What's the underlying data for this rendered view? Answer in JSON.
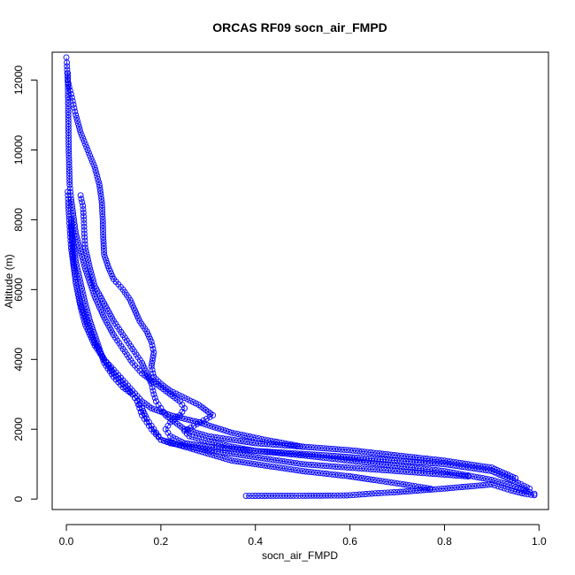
{
  "chart_data": {
    "type": "scatter",
    "title": "ORCAS RF09 socn_air_FMPD",
    "xlabel": "socn_air_FMPD",
    "ylabel": "Altitude (m)",
    "xlim": [
      -0.03,
      1.02
    ],
    "ylim": [
      -300,
      12800
    ],
    "xticks": [
      "0.0",
      "0.2",
      "0.4",
      "0.6",
      "0.8",
      "1.0"
    ],
    "yticks": [
      "0",
      "2000",
      "4000",
      "6000",
      "8000",
      "10000",
      "12000"
    ],
    "grid": false,
    "legend": "none",
    "point_style": "open-circle",
    "color": "#0000ff",
    "series": [
      {
        "x": [
          0.0,
          0.001,
          0.002,
          0.003,
          0.006,
          0.01,
          0.015,
          0.02,
          0.03,
          0.045,
          0.06,
          0.07,
          0.075,
          0.077,
          0.078,
          0.08,
          0.09,
          0.1,
          0.12,
          0.135,
          0.145,
          0.155,
          0.17,
          0.18,
          0.185,
          0.18,
          0.185,
          0.2,
          0.22,
          0.25,
          0.28,
          0.3,
          0.31,
          0.29,
          0.27,
          0.25,
          0.26,
          0.3,
          0.35,
          0.4,
          0.5,
          0.6,
          0.7,
          0.8,
          0.9,
          0.95,
          0.98,
          0.99
        ],
        "y": [
          12650,
          12500,
          12200,
          12000,
          11800,
          11600,
          11300,
          11000,
          10500,
          10000,
          9500,
          9000,
          8500,
          8000,
          7500,
          7000,
          6600,
          6300,
          6000,
          5700,
          5400,
          5100,
          4800,
          4500,
          4200,
          3800,
          3500,
          3300,
          3100,
          2900,
          2700,
          2500,
          2400,
          2250,
          2100,
          1950,
          1800,
          1650,
          1500,
          1380,
          1250,
          1100,
          950,
          800,
          550,
          350,
          200,
          150
        ]
      },
      {
        "x": [
          0.003,
          0.004,
          0.005,
          0.007,
          0.01,
          0.02,
          0.04,
          0.06,
          0.08,
          0.1,
          0.12,
          0.14,
          0.16,
          0.18,
          0.2,
          0.22,
          0.24,
          0.25,
          0.24,
          0.22,
          0.21,
          0.22,
          0.25,
          0.3,
          0.4,
          0.55,
          0.7,
          0.8,
          0.85,
          0.9,
          0.95,
          0.98
        ],
        "y": [
          12200,
          11000,
          10000,
          9000,
          8600,
          7600,
          6600,
          5800,
          5200,
          4700,
          4300,
          3900,
          3600,
          3400,
          3200,
          3000,
          2800,
          2600,
          2400,
          2200,
          2000,
          1800,
          1600,
          1500,
          1380,
          1250,
          1100,
          1000,
          900,
          800,
          500,
          300
        ]
      },
      {
        "x": [
          0.003,
          0.004,
          0.006,
          0.008,
          0.01,
          0.015,
          0.02,
          0.03,
          0.045,
          0.06,
          0.08,
          0.1,
          0.12,
          0.14,
          0.15,
          0.155,
          0.16,
          0.17,
          0.18,
          0.19,
          0.2,
          0.22,
          0.26,
          0.3,
          0.4,
          0.5,
          0.6,
          0.7,
          0.8,
          0.85
        ],
        "y": [
          8800,
          8500,
          8000,
          7600,
          7200,
          6700,
          6200,
          5600,
          5000,
          4500,
          4000,
          3600,
          3300,
          3000,
          2800,
          2600,
          2400,
          2200,
          2000,
          1850,
          1700,
          1600,
          1500,
          1400,
          1200,
          1000,
          900,
          800,
          700,
          650
        ]
      },
      {
        "x": [
          0.03,
          0.035,
          0.037,
          0.038,
          0.04,
          0.05,
          0.06,
          0.08,
          0.1,
          0.12,
          0.14,
          0.16,
          0.17,
          0.18,
          0.185,
          0.19,
          0.2,
          0.21,
          0.23,
          0.25,
          0.3,
          0.4,
          0.5,
          0.6,
          0.7,
          0.8,
          0.9,
          0.95
        ],
        "y": [
          8700,
          8400,
          8000,
          7600,
          7200,
          6600,
          6100,
          5600,
          5100,
          4700,
          4300,
          3900,
          3600,
          3300,
          3000,
          2800,
          2600,
          2400,
          2200,
          2000,
          1800,
          1600,
          1500,
          1400,
          1250,
          1100,
          900,
          600
        ]
      },
      {
        "x": [
          0.01,
          0.015,
          0.02,
          0.03,
          0.04,
          0.05,
          0.06,
          0.07,
          0.08,
          0.1,
          0.12,
          0.14,
          0.15,
          0.16,
          0.17,
          0.18,
          0.19,
          0.2,
          0.25,
          0.3,
          0.35,
          0.4,
          0.5,
          0.6,
          0.7,
          0.77
        ],
        "y": [
          7800,
          7300,
          6800,
          6200,
          5600,
          5100,
          4700,
          4300,
          3900,
          3500,
          3200,
          3000,
          2800,
          2600,
          2300,
          2100,
          1900,
          1700,
          1500,
          1300,
          1100,
          1000,
          800,
          650,
          450,
          300
        ]
      },
      {
        "x": [
          0.01,
          0.012,
          0.015,
          0.02,
          0.03,
          0.04,
          0.06,
          0.08,
          0.1,
          0.12,
          0.14,
          0.16,
          0.18,
          0.22,
          0.28,
          0.35,
          0.42,
          0.5
        ],
        "y": [
          8000,
          7400,
          6800,
          6200,
          5500,
          5000,
          4400,
          4000,
          3700,
          3400,
          3100,
          2800,
          2600,
          2400,
          2200,
          1900,
          1700,
          1500
        ]
      },
      {
        "x": [
          0.38,
          0.4,
          0.42,
          0.45,
          0.48,
          0.5,
          0.53,
          0.56,
          0.58,
          0.6,
          0.62,
          0.64,
          0.66,
          0.7,
          0.75,
          0.8,
          0.85,
          0.9,
          0.94,
          0.97,
          0.99
        ],
        "y": [
          90,
          92,
          94,
          95,
          95,
          96,
          98,
          100,
          100,
          110,
          130,
          150,
          170,
          200,
          250,
          300,
          360,
          420,
          250,
          150,
          110
        ]
      }
    ]
  }
}
